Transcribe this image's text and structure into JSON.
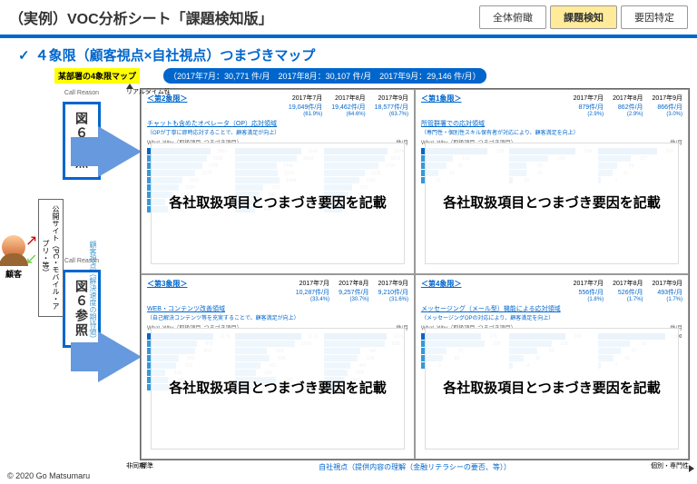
{
  "header": {
    "title": "（実例）VOC分析シート「課題検知版」",
    "tabs": [
      "全体俯瞰",
      "課題検知",
      "要因特定"
    ],
    "active_tab": 1
  },
  "subheader": "４象限（顧客視点×自社視点）つまづきマップ",
  "yellow_label": "某部署の4象限マップ",
  "blue_pill": "（2017年7月：30,771 件/月　2017年8月：30,107 件/月　2017年9月：29,146 件/月）",
  "customer_label": "顧客",
  "vtext": "公開サイト（PC・モバイル・アプリ・等）",
  "refbox": "図６参照",
  "callreason": "Call Reason",
  "axis": {
    "y_top": "リアルタイム性",
    "y_bot": "非同期",
    "y_mid": "顧客視点（解決速度の期待値）",
    "x": "自社視点（提供内容の理解（金融リテラシーの要否、等））",
    "x_l": "標準",
    "x_r": "個別・専門性"
  },
  "months": [
    "2017年7月",
    "2017年8月",
    "2017年9月"
  ],
  "ww_label": "What_Why（取扱項目_つまづき項目）",
  "unit": "件/月",
  "overlay": "各社取扱項目とつまづき要因を記載",
  "quads": [
    {
      "title": "＜第2象限＞",
      "subtitle": "チャットも含めたオペレータ（OP）応対領域",
      "note": "（OPが丁寧に即時応対することで、顧客満足が向上）",
      "vals": [
        {
          "v": "19,049件/月",
          "p": "(61.9%)"
        },
        {
          "v": "19,462件/月",
          "p": "(64.6%)"
        },
        {
          "v": "18,577件/月",
          "p": "(63.7%)"
        }
      ],
      "bars": [
        [
          2063,
          1932,
          1785,
          1575,
          1161,
          1037,
          811,
          597,
          691
        ],
        [
          2146,
          2003,
          1345,
          1374,
          1444,
          912,
          780,
          783,
          640
        ],
        [
          2076,
          1972,
          1791,
          1326,
          1162,
          910,
          791,
          699,
          602
        ]
      ],
      "bar_color": "#3399dd",
      "hl_color": "#0066cc",
      "max": 2200
    },
    {
      "title": "＜第1象限＞",
      "subtitle": "所管群署での応対領域",
      "note": "（専門性・個別性スキル保有者が対応により、顧客満足を向上）",
      "vals": [
        {
          "v": "879件/月",
          "p": "(2.9%)"
        },
        {
          "v": "862件/月",
          "p": "(2.9%)"
        },
        {
          "v": "866件/月",
          "p": "(3.0%)"
        }
      ],
      "bars": [
        [
          236,
          113,
          91,
          62,
          12
        ],
        [
          234,
          138,
          60,
          61,
          10
        ],
        [
          210,
          117,
          69,
          51,
          7
        ]
      ],
      "bar_color": "#3399dd",
      "hl_color": "#0066cc",
      "max": 240
    },
    {
      "title": "＜第3象限＞",
      "subtitle": "WEB・コンテンツ改善領域",
      "note": "（自己解決コンテンツ等を充実することで、顧客満足が向上）",
      "vals": [
        {
          "v": "10,287件/月",
          "p": "(33.4%)"
        },
        {
          "v": "9,257件/月",
          "p": "(30.7%)"
        },
        {
          "v": "9,210件/月",
          "p": "(31.6%)"
        }
      ],
      "bars": [
        [
          1179,
          878,
          853,
          555,
          522,
          318,
          366,
          386
        ],
        [
          1173,
          1054,
          565,
          598,
          451,
          358,
          726,
          316
        ],
        [
          1121,
          1081,
          647,
          606,
          465,
          418,
          355,
          311
        ]
      ],
      "bar_color": "#3399dd",
      "hl_color": "#0066cc",
      "max": 1200
    },
    {
      "title": "＜第4象限＞",
      "subtitle": "メッセージング（メール型）機能による応対領域",
      "note": "（メッセージングOPの対応により、顧客満足を向上）",
      "vals": [
        {
          "v": "556件/月",
          "p": "(1.8%)"
        },
        {
          "v": "526件/月",
          "p": "(1.7%)"
        },
        {
          "v": "493件/月",
          "p": "(1.7%)"
        }
      ],
      "bars": [
        [
          176,
          187,
          76,
          65,
          9
        ],
        [
          165,
          125,
          83,
          42,
          4
        ],
        [
          200,
          95,
          67,
          46,
          7
        ]
      ],
      "bar_color": "#3399dd",
      "hl_color": "#0066cc",
      "max": 200
    }
  ],
  "copyright": "© 2020 Go Matsumaru"
}
